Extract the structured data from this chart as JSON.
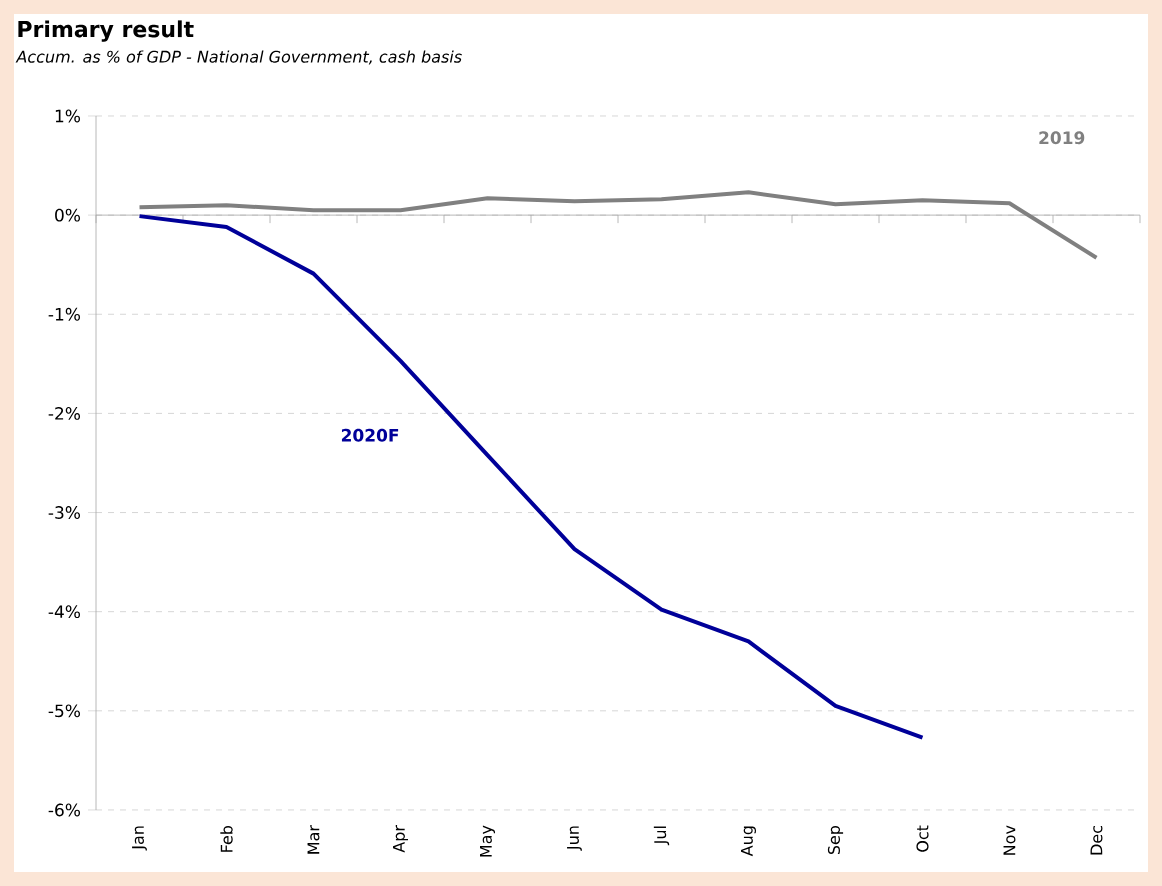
{
  "chart_data": {
    "type": "line",
    "title": "Primary result",
    "subtitle": "Accum. as % of GDP  - National Government, cash basis",
    "categories": [
      "Jan",
      "Feb",
      "Mar",
      "Apr",
      "May",
      "Jun",
      "Jul",
      "Aug",
      "Sep",
      "Oct",
      "Nov",
      "Dec"
    ],
    "series": [
      {
        "name": "2019",
        "color": "#808080",
        "values": [
          0.08,
          0.1,
          0.05,
          0.05,
          0.17,
          0.14,
          0.16,
          0.23,
          0.11,
          0.15,
          0.12,
          -0.43
        ]
      },
      {
        "name": "2020F",
        "color": "#000099",
        "values": [
          -0.01,
          -0.12,
          -0.59,
          -1.47,
          -2.42,
          -3.37,
          -3.98,
          -4.3,
          -4.95,
          -5.27,
          null,
          null
        ]
      }
    ],
    "ylim": [
      -6,
      1
    ],
    "yticks": [
      {
        "value": 1,
        "label": "1%"
      },
      {
        "value": 0,
        "label": "0%"
      },
      {
        "value": -1,
        "label": "-1%"
      },
      {
        "value": -2,
        "label": "-2%"
      },
      {
        "value": -3,
        "label": "-3%"
      },
      {
        "value": -4,
        "label": "-4%"
      },
      {
        "value": -5,
        "label": "-5%"
      },
      {
        "value": -6,
        "label": "-6%"
      }
    ],
    "grid": "y",
    "marker": "none",
    "line_style": "solid"
  }
}
